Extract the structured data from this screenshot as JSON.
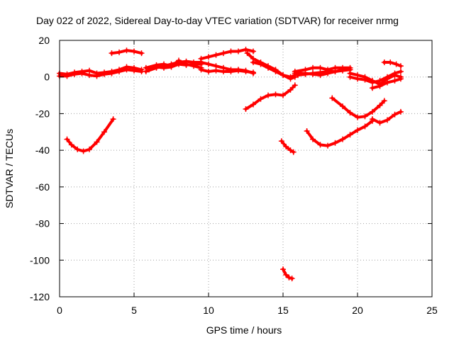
{
  "chart_data": {
    "type": "scatter",
    "title": "Day 022 of 2022, Sidereal Day-to-day VTEC variation (SDTVAR) for receiver nrmg",
    "xlabel": "GPS time / hours",
    "ylabel": "SDTVAR / TECUs",
    "xlim": [
      0,
      25
    ],
    "ylim": [
      -120,
      20
    ],
    "xticks": [
      0,
      5,
      10,
      15,
      20,
      25
    ],
    "xtick_labels": [
      "0",
      "5",
      "10",
      "15",
      "20",
      "25"
    ],
    "yticks": [
      20,
      0,
      -20,
      -40,
      -60,
      -80,
      -100,
      -120
    ],
    "ytick_labels": [
      "20",
      "0",
      "-20",
      "-40",
      "-60",
      "-80",
      "-100",
      "-120"
    ],
    "grid": true,
    "color": "#ff0000",
    "series": [
      {
        "name": "s1",
        "x": [
          0.0,
          0.5,
          1.0,
          1.5,
          2.0,
          2.5,
          3.0,
          3.5,
          4.0,
          4.5,
          5.0,
          5.5
        ],
        "y": [
          2,
          1.5,
          2.5,
          3,
          3.5,
          2,
          2.5,
          3,
          4,
          5.5,
          5,
          4
        ]
      },
      {
        "name": "s2",
        "x": [
          0.0,
          0.5,
          1.0,
          1.5,
          2.0,
          2.5,
          3.0,
          3.5,
          4.0,
          4.5,
          5.0,
          5.5
        ],
        "y": [
          0.5,
          0.5,
          1.5,
          2,
          1,
          0.5,
          1.5,
          2,
          3,
          4,
          3.5,
          3
        ]
      },
      {
        "name": "s3",
        "x": [
          3.5,
          4.0,
          4.5,
          5.0,
          5.5
        ],
        "y": [
          13,
          13.5,
          14.5,
          14,
          13
        ]
      },
      {
        "name": "s4",
        "x": [
          5.8,
          6.5,
          7.0,
          7.5,
          8.0,
          8.5,
          9.0,
          9.5
        ],
        "y": [
          3,
          5,
          6,
          7,
          8,
          8.5,
          8,
          8
        ]
      },
      {
        "name": "s5",
        "x": [
          5.8,
          6.5,
          7.0,
          7.5,
          8.0,
          8.5,
          9.0,
          9.5
        ],
        "y": [
          5,
          6.5,
          7,
          6,
          9,
          7,
          6,
          5
        ]
      },
      {
        "name": "s6",
        "x": [
          6.0,
          6.5,
          7.0,
          7.5,
          8.0,
          8.5,
          9.0,
          9.5
        ],
        "y": [
          4,
          5.5,
          5,
          5.5,
          7,
          6.5,
          7,
          7
        ]
      },
      {
        "name": "s7",
        "x": [
          9.5,
          10.0,
          10.5,
          11.0,
          11.5,
          12.0,
          12.5,
          13.0
        ],
        "y": [
          10,
          11,
          12,
          13,
          14,
          14,
          15,
          14
        ]
      },
      {
        "name": "s8",
        "x": [
          9.5,
          10.0,
          10.5,
          11.0,
          11.5,
          12.0,
          12.5,
          13.0
        ],
        "y": [
          8,
          7,
          6,
          5,
          4,
          4,
          3.5,
          2
        ]
      },
      {
        "name": "s9",
        "x": [
          9.5,
          10.0,
          10.5,
          11.0,
          11.5,
          12.0,
          12.5,
          13.0
        ],
        "y": [
          4,
          3,
          3.5,
          3,
          3,
          3.5,
          3,
          2.5
        ]
      },
      {
        "name": "s10",
        "x": [
          12.6,
          13.0,
          13.5,
          14.0,
          14.5,
          15.0,
          15.5,
          15.8
        ],
        "y": [
          13,
          10,
          8,
          6,
          4,
          1,
          -1,
          0
        ]
      },
      {
        "name": "s11",
        "x": [
          13.0,
          13.5,
          14.0,
          14.5,
          15.0,
          15.5,
          15.8
        ],
        "y": [
          8,
          7,
          5,
          3,
          1,
          0,
          1
        ]
      },
      {
        "name": "s12",
        "x": [
          15.8,
          16.5,
          17.0,
          17.5,
          18.0,
          18.5,
          19.0,
          19.5
        ],
        "y": [
          2,
          2,
          1.5,
          1,
          2,
          3,
          4,
          4
        ]
      },
      {
        "name": "s13",
        "x": [
          15.8,
          16.5,
          17.0,
          17.5,
          18.0,
          18.5,
          19.0,
          19.5
        ],
        "y": [
          3,
          4,
          5,
          5,
          4,
          5,
          5,
          5
        ]
      },
      {
        "name": "s14",
        "x": [
          16.0,
          16.5,
          17.0,
          17.5,
          18.0,
          18.5,
          19.0,
          19.5
        ],
        "y": [
          1,
          1.5,
          2,
          2.5,
          3,
          3,
          3.5,
          4
        ]
      },
      {
        "name": "s15",
        "x": [
          19.5,
          20.0,
          20.5,
          21.0,
          21.5,
          22.0,
          22.5,
          22.9
        ],
        "y": [
          2,
          1,
          0,
          -2,
          -4,
          -1,
          1,
          0
        ]
      },
      {
        "name": "s16",
        "x": [
          19.5,
          20.0,
          20.5,
          21.0,
          21.5,
          22.0,
          22.5,
          22.9
        ],
        "y": [
          0,
          -1,
          -1.5,
          -3,
          -2,
          0,
          2,
          3
        ]
      },
      {
        "name": "s17",
        "x": [
          21.0,
          21.5,
          22.0,
          22.5,
          22.9
        ],
        "y": [
          -6,
          -5,
          -3,
          -2,
          -1
        ]
      },
      {
        "name": "s18",
        "x": [
          21.8,
          22.2,
          22.6,
          22.9
        ],
        "y": [
          8,
          8,
          7,
          6
        ]
      },
      {
        "name": "s19",
        "x": [
          0.5,
          0.8,
          1.2,
          1.6,
          2.0,
          2.5,
          3.0,
          3.6
        ],
        "y": [
          -34,
          -37,
          -39.5,
          -40.5,
          -39.5,
          -35.5,
          -30,
          -23
        ]
      },
      {
        "name": "s20",
        "x": [
          12.5,
          13.0,
          13.5,
          14.0,
          14.5,
          15.0,
          15.5,
          15.8
        ],
        "y": [
          -17.5,
          -15,
          -12,
          -10,
          -9.5,
          -10,
          -7,
          -4.5
        ]
      },
      {
        "name": "s21",
        "x": [
          14.9,
          15.2,
          15.5,
          15.7
        ],
        "y": [
          -35,
          -38,
          -40,
          -41
        ]
      },
      {
        "name": "s22",
        "x": [
          16.6,
          17.0,
          17.5,
          18.0,
          18.5,
          19.0,
          19.5,
          20.0,
          20.5,
          21.0
        ],
        "y": [
          -29.5,
          -34,
          -37,
          -37.5,
          -36,
          -34,
          -31.5,
          -29,
          -27,
          -24
        ]
      },
      {
        "name": "s23",
        "x": [
          18.3,
          19.0,
          19.5,
          20.0,
          20.5,
          21.0,
          21.5,
          21.8
        ],
        "y": [
          -11.5,
          -16,
          -19.5,
          -22,
          -21.5,
          -19,
          -15.5,
          -13
        ]
      },
      {
        "name": "s24",
        "x": [
          21.0,
          21.5,
          22.0,
          22.5,
          22.9
        ],
        "y": [
          -23,
          -25,
          -23.5,
          -20.5,
          -19
        ]
      },
      {
        "name": "s25",
        "x": [
          15.0,
          15.2,
          15.4,
          15.6
        ],
        "y": [
          -105,
          -108,
          -109.5,
          -110
        ]
      }
    ]
  }
}
